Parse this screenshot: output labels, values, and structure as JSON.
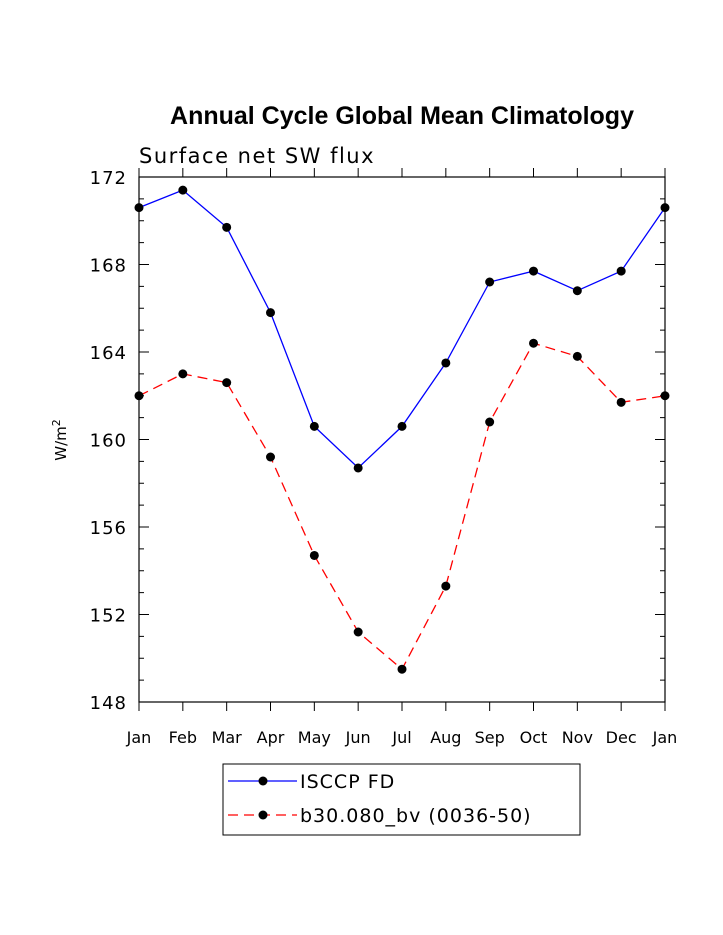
{
  "chart_data": {
    "type": "line",
    "title": "Annual Cycle Global Mean Climatology",
    "subtitle": "Surface net SW flux",
    "xlabel": "",
    "ylabel": "W/m",
    "ylabel_superscript": "2",
    "categories": [
      "Jan",
      "Feb",
      "Mar",
      "Apr",
      "May",
      "Jun",
      "Jul",
      "Aug",
      "Sep",
      "Oct",
      "Nov",
      "Dec",
      "Jan"
    ],
    "yticks": [
      "148",
      "152",
      "156",
      "160",
      "164",
      "168",
      "172"
    ],
    "ylim": [
      148,
      172
    ],
    "grid": false,
    "legend_position": "bottom",
    "series": [
      {
        "name": "ISCCP FD",
        "color": "#0000ff",
        "style": "solid",
        "marker": "filled-circle",
        "values": [
          170.6,
          171.4,
          169.7,
          165.8,
          160.6,
          158.7,
          160.6,
          163.5,
          167.2,
          167.7,
          166.8,
          167.7,
          170.6
        ]
      },
      {
        "name": "b30.080_bv (0036-50)",
        "color": "#ff0000",
        "style": "dashed",
        "marker": "filled-circle",
        "values": [
          162.0,
          163.0,
          162.6,
          159.2,
          154.7,
          151.2,
          149.5,
          153.3,
          160.8,
          164.4,
          163.8,
          161.7,
          162.0
        ]
      }
    ]
  }
}
